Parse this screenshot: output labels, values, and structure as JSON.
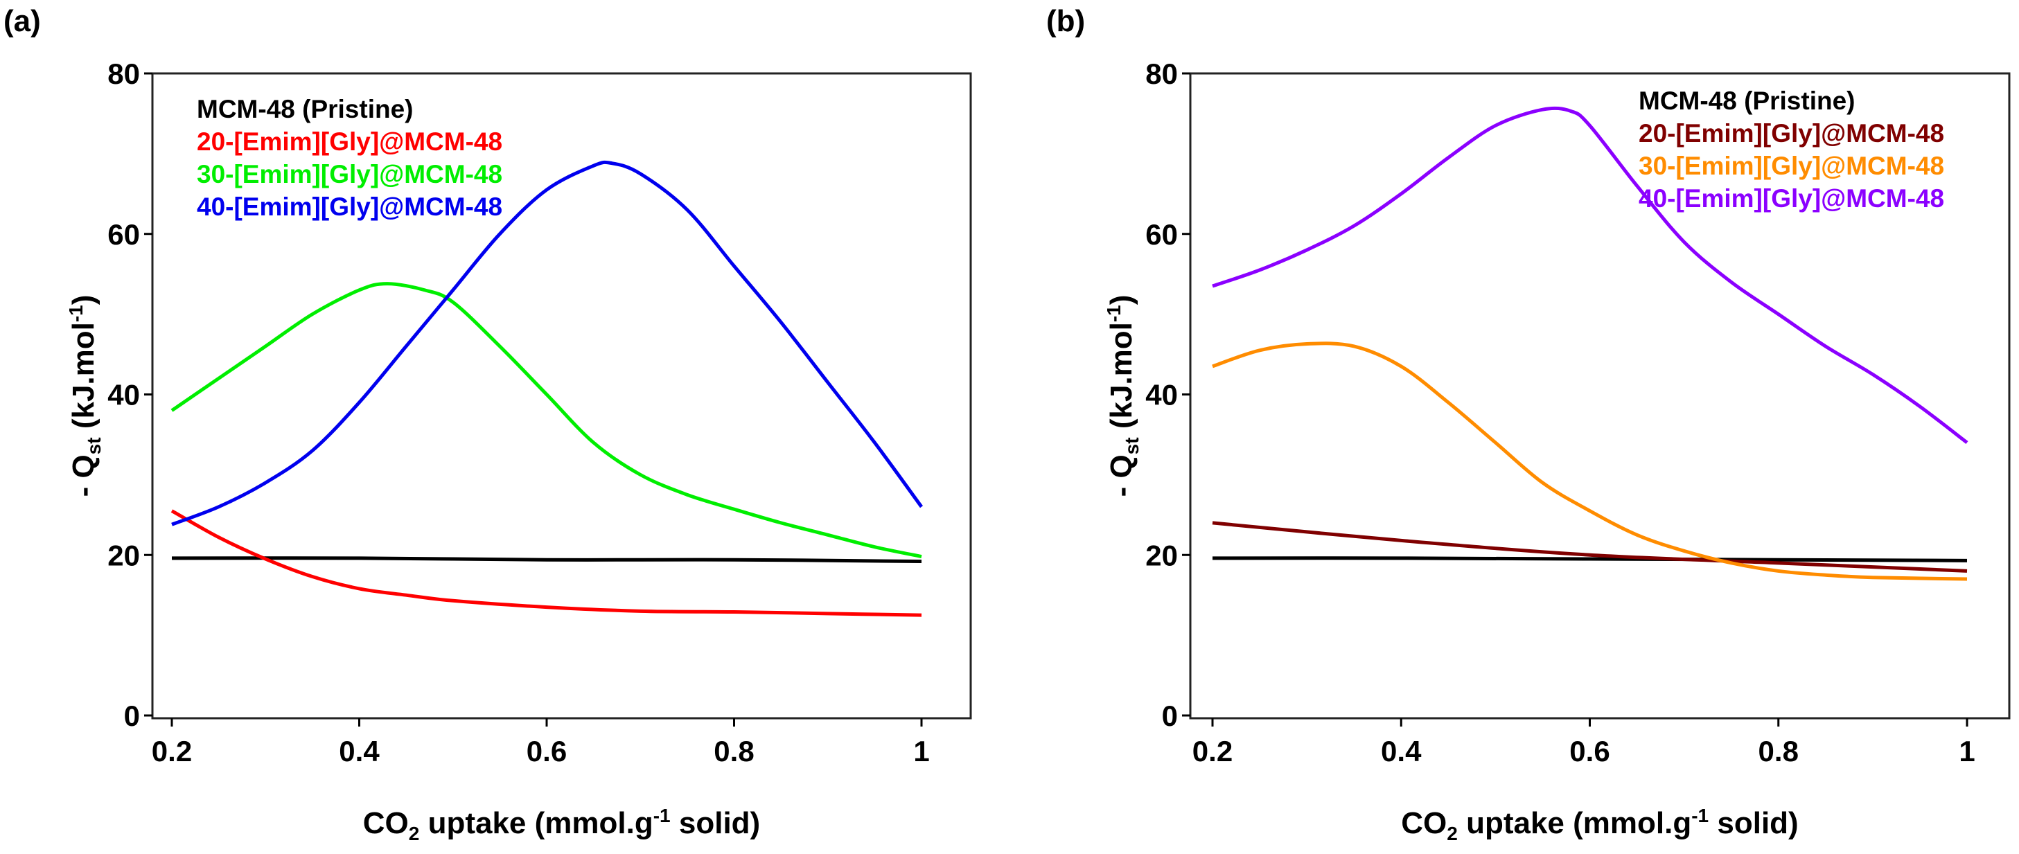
{
  "chart_data": [
    {
      "type": "line",
      "panel_label": "(a)",
      "xlabel": "CO2 uptake (mmol.g-1 solid)",
      "xlabel_parts": {
        "a": "CO",
        "sub": "2",
        "b": " uptake (mmol.g",
        "sup": "-1",
        "c": " solid)"
      },
      "ylabel": "- Qst (kJ.mol-1)",
      "ylabel_parts": {
        "a": "- Q",
        "sub": "st",
        "b": " (kJ.mol",
        "sup": "-1",
        "c": ")"
      },
      "xlim": [
        0.2,
        1.0
      ],
      "ylim": [
        0,
        80
      ],
      "xticks": [
        "0.2",
        "0.4",
        "0.6",
        "0.8",
        "1"
      ],
      "yticks": [
        "0",
        "20",
        "40",
        "60",
        "80"
      ],
      "grid": false,
      "legend_position": "top-left",
      "series": [
        {
          "name": "MCM-48 (Pristine)",
          "color": "#000000",
          "x": [
            0.2,
            0.4,
            0.6,
            0.8,
            1.0
          ],
          "y": [
            19.6,
            19.6,
            19.4,
            19.4,
            19.2
          ]
        },
        {
          "name": "20-[Emim][Gly]@MCM-48",
          "color": "#ff0000",
          "x": [
            0.2,
            0.25,
            0.3,
            0.35,
            0.4,
            0.45,
            0.5,
            0.6,
            0.7,
            0.8,
            0.9,
            1.0
          ],
          "y": [
            25.5,
            22.2,
            19.5,
            17.3,
            15.8,
            15.0,
            14.3,
            13.5,
            13.0,
            12.9,
            12.7,
            12.5
          ]
        },
        {
          "name": "30-[Emim][Gly]@MCM-48",
          "color": "#00ee00",
          "x": [
            0.2,
            0.25,
            0.3,
            0.35,
            0.4,
            0.43,
            0.47,
            0.5,
            0.55,
            0.6,
            0.65,
            0.7,
            0.75,
            0.8,
            0.85,
            0.9,
            0.95,
            1.0
          ],
          "y": [
            38,
            42,
            46,
            50,
            53,
            53.8,
            53.0,
            51.5,
            46,
            40,
            34,
            30,
            27.5,
            25.7,
            24,
            22.5,
            21,
            19.8
          ]
        },
        {
          "name": "40-[Emim][Gly]@MCM-48",
          "color": "#0000ee",
          "x": [
            0.2,
            0.25,
            0.3,
            0.35,
            0.4,
            0.45,
            0.5,
            0.55,
            0.6,
            0.65,
            0.67,
            0.7,
            0.75,
            0.8,
            0.85,
            0.9,
            0.95,
            1.0
          ],
          "y": [
            23.8,
            26,
            29,
            33,
            39,
            46,
            53,
            60,
            65.5,
            68.5,
            68.8,
            67.5,
            63,
            56,
            49,
            41.5,
            34,
            26
          ]
        }
      ]
    },
    {
      "type": "line",
      "panel_label": "(b)",
      "xlabel": "CO2 uptake (mmol.g-1 solid)",
      "xlabel_parts": {
        "a": "CO",
        "sub": "2",
        "b": " uptake (mmol.g",
        "sup": "-1",
        "c": " solid)"
      },
      "ylabel": "- Qst (kJ.mol-1)",
      "ylabel_parts": {
        "a": "- Q",
        "sub": "st",
        "b": " (kJ.mol",
        "sup": "-1",
        "c": ")"
      },
      "xlim": [
        0.2,
        1.0
      ],
      "ylim": [
        0,
        80
      ],
      "xticks": [
        "0.2",
        "0.4",
        "0.6",
        "0.8",
        "1"
      ],
      "yticks": [
        "0",
        "20",
        "40",
        "60",
        "80"
      ],
      "grid": false,
      "legend_position": "top-right",
      "series": [
        {
          "name": "MCM-48 (Pristine)",
          "color": "#000000",
          "x": [
            0.2,
            0.4,
            0.6,
            0.8,
            1.0
          ],
          "y": [
            19.6,
            19.6,
            19.5,
            19.4,
            19.3
          ]
        },
        {
          "name": "20-[Emim][Gly]@MCM-48",
          "color": "#800000",
          "x": [
            0.2,
            0.4,
            0.6,
            0.8,
            1.0
          ],
          "y": [
            24,
            21.8,
            20.0,
            19.0,
            18.0
          ]
        },
        {
          "name": "30-[Emim][Gly]@MCM-48",
          "color": "#ff8c00",
          "x": [
            0.2,
            0.25,
            0.3,
            0.35,
            0.4,
            0.45,
            0.5,
            0.55,
            0.6,
            0.65,
            0.7,
            0.75,
            0.8,
            0.85,
            0.9,
            1.0
          ],
          "y": [
            43.5,
            45.5,
            46.3,
            46,
            43.5,
            39,
            34,
            29,
            25.5,
            22.5,
            20.5,
            19,
            18,
            17.5,
            17.2,
            17
          ]
        },
        {
          "name": "40-[Emim][Gly]@MCM-48",
          "color": "#8b00ff",
          "x": [
            0.2,
            0.25,
            0.3,
            0.35,
            0.4,
            0.45,
            0.5,
            0.55,
            0.58,
            0.6,
            0.65,
            0.7,
            0.75,
            0.8,
            0.85,
            0.9,
            0.95,
            1.0
          ],
          "y": [
            53.5,
            55.5,
            58,
            61,
            65,
            69.5,
            73.5,
            75.5,
            75.3,
            73.5,
            66,
            59,
            54,
            50,
            46,
            42.5,
            38.5,
            34
          ]
        }
      ]
    }
  ]
}
